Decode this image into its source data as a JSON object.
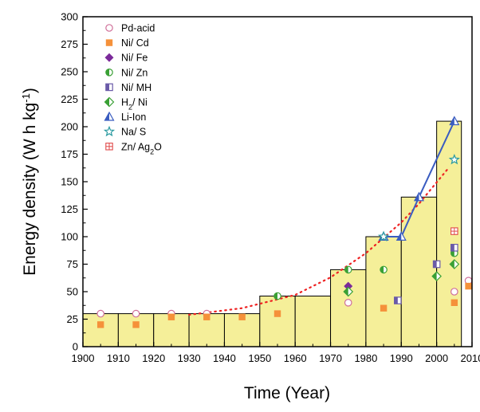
{
  "chart_data": {
    "type": "bar",
    "xlabel": "Time (Year)",
    "ylabel": {
      "main": "Energy density (W h kg",
      "sup": "-1",
      "close": ")"
    },
    "xlim": [
      1900,
      2010
    ],
    "ylim": [
      0,
      300
    ],
    "x_ticks": [
      1900,
      1910,
      1920,
      1930,
      1940,
      1950,
      1960,
      1970,
      1980,
      1990,
      2000,
      2010
    ],
    "y_ticks": [
      0,
      25,
      50,
      75,
      100,
      125,
      150,
      175,
      200,
      225,
      250,
      275,
      300
    ],
    "grid": false,
    "legend_position": "top-left",
    "colors": {
      "bar_fill": "#f5ef99",
      "bar_stroke": "#000000",
      "trend_dotted": "#ee2222",
      "li_line": "#3a5cc0"
    },
    "steps": [
      {
        "x0": 1900,
        "x1": 1910,
        "value": 30
      },
      {
        "x0": 1910,
        "x1": 1920,
        "value": 30
      },
      {
        "x0": 1920,
        "x1": 1930,
        "value": 30
      },
      {
        "x0": 1930,
        "x1": 1940,
        "value": 30
      },
      {
        "x0": 1940,
        "x1": 1950,
        "value": 30
      },
      {
        "x0": 1950,
        "x1": 1960,
        "value": 46
      },
      {
        "x0": 1960,
        "x1": 1970,
        "value": 46
      },
      {
        "x0": 1970,
        "x1": 1980,
        "value": 70
      },
      {
        "x0": 1980,
        "x1": 1990,
        "value": 100
      },
      {
        "x0": 1990,
        "x1": 2000,
        "value": 136
      },
      {
        "x0": 2000,
        "x1": 2007,
        "value": 205
      }
    ],
    "trend": [
      [
        1930,
        29
      ],
      [
        1945,
        35
      ],
      [
        1960,
        47
      ],
      [
        1970,
        63
      ],
      [
        1980,
        85
      ],
      [
        1990,
        113
      ],
      [
        1995,
        130
      ],
      [
        2003,
        161
      ]
    ],
    "series": [
      {
        "name": "Pd-acid",
        "marker": "circle-open",
        "color": "#d0709a",
        "points": [
          [
            1905,
            30
          ],
          [
            1915,
            30
          ],
          [
            1925,
            30
          ],
          [
            1935,
            30
          ],
          [
            1975,
            40
          ],
          [
            2005,
            50
          ],
          [
            2009,
            60
          ]
        ]
      },
      {
        "name": "Ni/ Cd",
        "marker": "square",
        "color": "#f5913a",
        "points": [
          [
            1905,
            20
          ],
          [
            1915,
            20
          ],
          [
            1925,
            27
          ],
          [
            1935,
            27
          ],
          [
            1945,
            27
          ],
          [
            1955,
            30
          ],
          [
            1985,
            35
          ],
          [
            2005,
            40
          ],
          [
            2009,
            55
          ]
        ]
      },
      {
        "name": "Ni/ Fe",
        "marker": "diamond",
        "color": "#7b2a9a",
        "points": [
          [
            1975,
            55
          ]
        ]
      },
      {
        "name": "Ni/ Zn",
        "marker": "circle-half",
        "color": "#3aa035",
        "points": [
          [
            1955,
            46
          ],
          [
            1975,
            70
          ],
          [
            1985,
            70
          ],
          [
            2005,
            85
          ]
        ]
      },
      {
        "name": "Ni/ MH",
        "marker": "square-half",
        "color": "#6a5aa8",
        "points": [
          [
            1989,
            42
          ],
          [
            2000,
            75
          ],
          [
            2005,
            90
          ]
        ]
      },
      {
        "name": "H",
        "name_sub": "2",
        "name_rest": "/ Ni",
        "marker": "diamond-half",
        "color": "#3aa035",
        "points": [
          [
            1975,
            50
          ],
          [
            2000,
            64
          ],
          [
            2005,
            75
          ]
        ]
      },
      {
        "name": "Li-Ion",
        "marker": "triangle-half",
        "color": "#3a5cc0",
        "points": [
          [
            1985,
            100
          ],
          [
            1990,
            100
          ],
          [
            1995,
            136
          ],
          [
            2005,
            205
          ]
        ]
      },
      {
        "name": "Na/ S",
        "marker": "star",
        "color": "#2a9aa0",
        "points": [
          [
            1985,
            100
          ],
          [
            2005,
            170
          ]
        ]
      },
      {
        "name": "Zn/ Ag",
        "name_sub": "2",
        "name_rest": "O",
        "marker": "square-cross",
        "color": "#e04a4a",
        "points": [
          [
            2005,
            105
          ]
        ]
      }
    ]
  }
}
